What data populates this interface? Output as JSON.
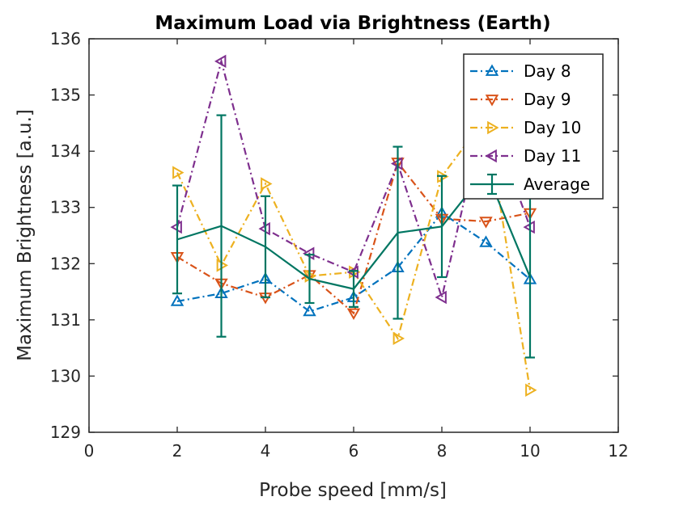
{
  "chart_data": {
    "type": "line",
    "title": "Maximum Load via Brightness (Earth)",
    "xlabel": "Probe speed [mm/s]",
    "ylabel": "Maximum Brightness [a.u.]",
    "xlim": [
      0,
      12
    ],
    "ylim": [
      129,
      136
    ],
    "xticks": [
      0,
      2,
      4,
      6,
      8,
      10,
      12
    ],
    "yticks": [
      129,
      130,
      131,
      132,
      133,
      134,
      135,
      136
    ],
    "grid": false,
    "legend_position": "top-right",
    "x": [
      2,
      3,
      4,
      5,
      6,
      7,
      8,
      9,
      10
    ],
    "series": [
      {
        "name": "Day 8",
        "color": "#0072BD",
        "marker": "triangle-up",
        "linestyle": "dashdot",
        "values": [
          131.33,
          131.47,
          131.73,
          131.15,
          131.4,
          131.93,
          132.9,
          132.38,
          131.72
        ]
      },
      {
        "name": "Day 9",
        "color": "#D95319",
        "marker": "triangle-down",
        "linestyle": "dashdot",
        "values": [
          132.12,
          131.65,
          131.4,
          131.8,
          131.12,
          133.8,
          132.8,
          132.75,
          132.9
        ]
      },
      {
        "name": "Day 10",
        "color": "#EDB120",
        "marker": "triangle-right",
        "linestyle": "dashdot",
        "values": [
          133.62,
          131.97,
          133.42,
          131.78,
          131.85,
          130.67,
          133.55,
          134.6,
          129.75
        ]
      },
      {
        "name": "Day 11",
        "color": "#7E2F8E",
        "marker": "triangle-left",
        "linestyle": "dashdot",
        "values": [
          132.65,
          135.6,
          132.62,
          132.18,
          131.85,
          133.78,
          131.4,
          134.8,
          132.65
        ]
      },
      {
        "name": "Average",
        "color": "#007662",
        "marker": "none",
        "linestyle": "solid",
        "values": [
          132.43,
          132.67,
          132.3,
          131.73,
          131.55,
          132.55,
          132.66,
          133.65,
          131.76
        ],
        "errors": [
          0.96,
          1.97,
          0.9,
          0.43,
          0.32,
          1.53,
          0.9,
          0.4,
          1.43
        ]
      }
    ]
  }
}
